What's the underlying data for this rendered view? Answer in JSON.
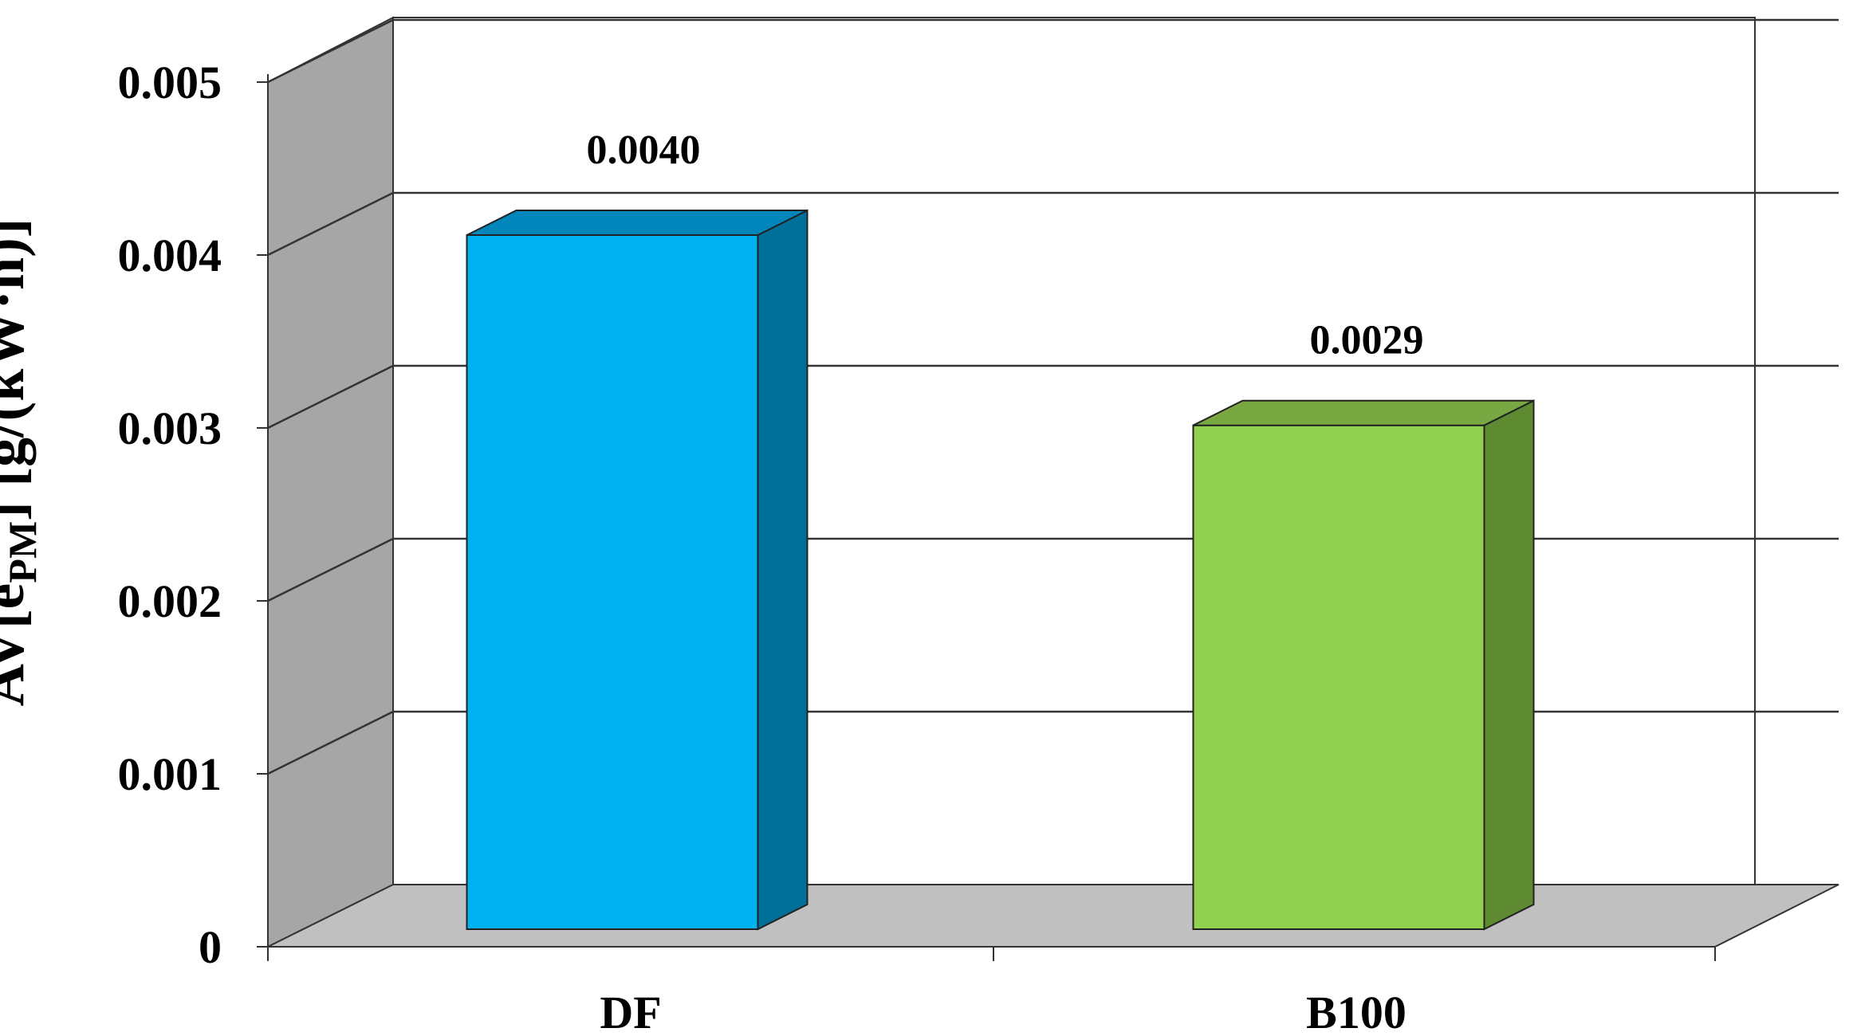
{
  "chart_data": {
    "type": "bar",
    "categories": [
      "DF",
      "B100"
    ],
    "values": [
      0.004,
      0.0029
    ],
    "data_labels": [
      "0.0040",
      "0.0029"
    ],
    "ylabel_main": "AV[e",
    "ylabel_sub": "PM",
    "ylabel_rest": "] [g/(kW·h)]",
    "ylim": [
      0,
      0.005
    ],
    "yticks": [
      {
        "value": 0,
        "label": "0"
      },
      {
        "value": 0.001,
        "label": "0.001"
      },
      {
        "value": 0.002,
        "label": "0.002"
      },
      {
        "value": 0.003,
        "label": "0.003"
      },
      {
        "value": 0.004,
        "label": "0.004"
      },
      {
        "value": 0.005,
        "label": "0.005"
      }
    ],
    "grid": true,
    "colors": {
      "bar_front": [
        "#00B2F0",
        "#92D050"
      ],
      "bar_side": [
        "#006F9A",
        "#5E8A32"
      ],
      "bar_top": [
        "#0086BA",
        "#78A842"
      ],
      "side_wall": "#A6A6A6",
      "floor": "#C0C0C0"
    }
  }
}
